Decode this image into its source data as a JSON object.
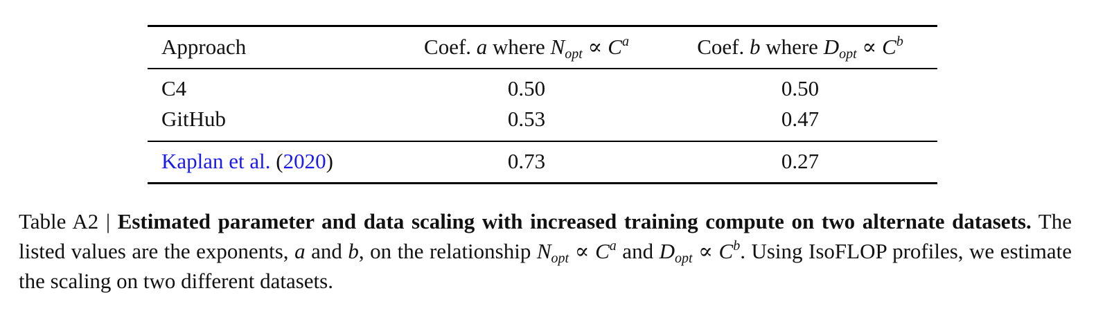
{
  "table": {
    "header": [
      [
        "Approach"
      ],
      [
        "Coef. ",
        "a",
        " where ",
        "N",
        "opt",
        " ∝ ",
        "C",
        "a"
      ],
      [
        "Coef. ",
        "b",
        " where ",
        "D",
        "opt",
        " ∝ ",
        "C",
        "b"
      ]
    ],
    "rows": [
      [
        "C4",
        "0.50",
        "0.50"
      ],
      [
        "GitHub",
        "0.53",
        "0.47"
      ],
      [
        [
          "Kaplan et al.",
          " (",
          "2020",
          ")"
        ],
        "0.73",
        "0.27"
      ]
    ]
  },
  "caption": [
    "Table A2 | ",
    "Estimated parameter and data scaling with increased training compute on two alternate datasets.",
    " The listed values are the exponents, ",
    "a",
    " and ",
    "b",
    ", on the relationship ",
    "N",
    "opt",
    " ∝ ",
    "C",
    "a",
    " and ",
    "D",
    "opt",
    " ∝ ",
    "C",
    "b",
    ". Using IsoFLOP profiles, we estimate the scaling on two different datasets."
  ]
}
